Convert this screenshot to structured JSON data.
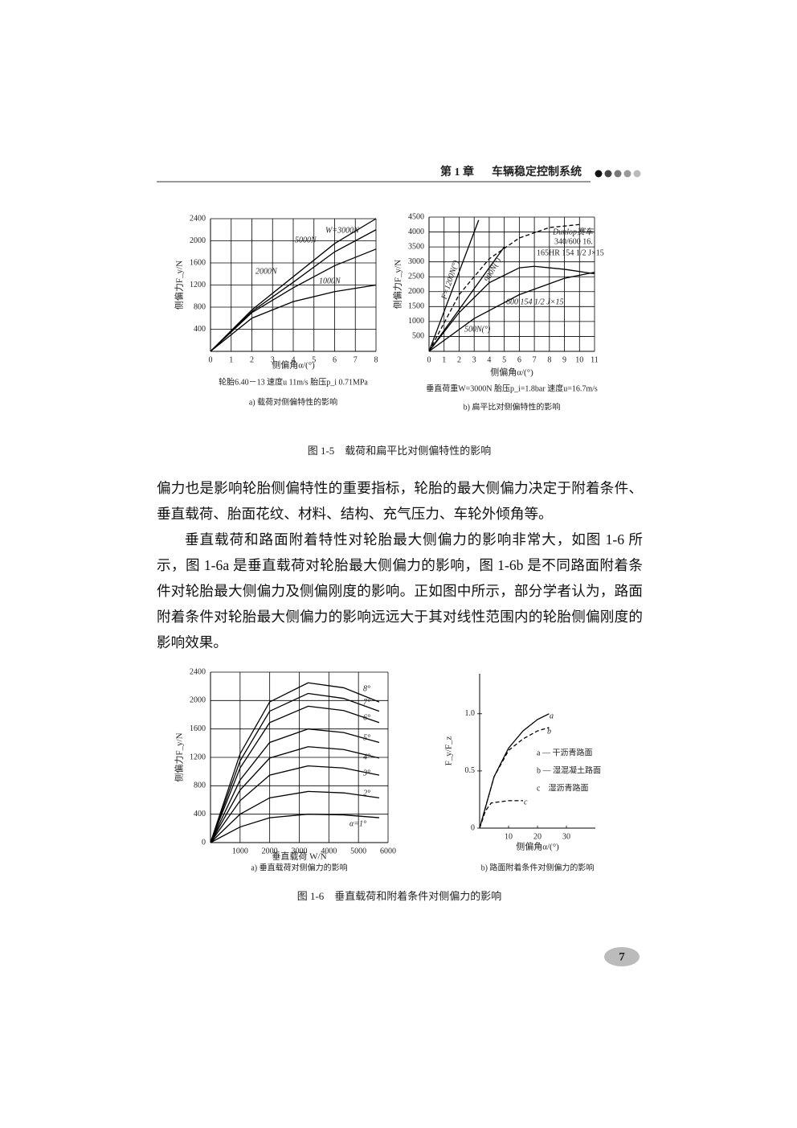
{
  "header": {
    "chapter": "第 1 章",
    "title": "车辆稳定控制系统"
  },
  "figure_1_5": {
    "caption": "图 1-5　载荷和扁平比对侧偏特性的影响",
    "charts": [
      {
        "type": "line",
        "ylabel": "侧偏力F_y/N",
        "xlabel": "侧偏角α/(°)",
        "note": "轮胎6.40－13 速度u 11m/s 胎压p_i 0.71MPa",
        "caption": "a) 载荷对侧偏特性的影响",
        "xlim": [
          0,
          8
        ],
        "ylim": [
          0,
          2400
        ],
        "xticks": [
          0,
          1,
          2,
          3,
          4,
          5,
          6,
          7,
          8
        ],
        "yticks": [
          400,
          800,
          1200,
          1600,
          2000,
          2400
        ],
        "grid": true,
        "series": [
          {
            "name": "1000N",
            "color": "#000",
            "x": [
              0,
              2,
              4,
              6,
              8
            ],
            "values": [
              0,
              600,
              900,
              1080,
              1200
            ]
          },
          {
            "name": "2000N",
            "color": "#000",
            "x": [
              0,
              2,
              4,
              6,
              8
            ],
            "values": [
              0,
              700,
              1150,
              1550,
              1850
            ]
          },
          {
            "name": "W=3000N",
            "color": "#000",
            "x": [
              0,
              2,
              4,
              6,
              8
            ],
            "values": [
              0,
              720,
              1250,
              1800,
              2200
            ]
          },
          {
            "name": "5000N",
            "color": "#000",
            "x": [
              0,
              2,
              4,
              6,
              8
            ],
            "values": [
              0,
              750,
              1350,
              1950,
              2400
            ]
          }
        ]
      },
      {
        "type": "line",
        "ylabel": "侧偏力F_y/N",
        "xlabel": "侧偏角α/(°)",
        "note": "垂直荷重W=3000N 胎压p_i=1.8bar 速度u=16.7m/s",
        "caption": "b) 扁平比对侧偏特性的影响",
        "xlim": [
          0,
          11
        ],
        "ylim": [
          0,
          4500
        ],
        "xticks": [
          0,
          1,
          2,
          3,
          4,
          5,
          6,
          7,
          8,
          9,
          10,
          11
        ],
        "yticks": [
          500,
          1000,
          1500,
          2000,
          2500,
          3000,
          3500,
          4000,
          4500
        ],
        "grid": true,
        "annotations": [
          "340/600 16.",
          "165HR 154 1/2 J×15"
        ],
        "series": [
          {
            "name": "F=1200N(°)",
            "color": "#000",
            "x": [
              0,
              3.3
            ],
            "values": [
              0,
              4400
            ]
          },
          {
            "name": "900N(°)",
            "color": "#000",
            "x": [
              0,
              5
            ],
            "values": [
              0,
              3500
            ]
          },
          {
            "name": "Dunlop赛车",
            "color": "#000",
            "dash": true,
            "x": [
              0,
              2,
              4,
              6,
              8,
              10
            ],
            "values": [
              0,
              1900,
              3100,
              3800,
              4150,
              4250
            ]
          },
          {
            "name": "600 154 1/2 J×15",
            "color": "#000",
            "x": [
              0,
              2,
              4,
              6,
              7,
              9,
              11
            ],
            "values": [
              0,
              1300,
              2300,
              2800,
              2850,
              2750,
              2600
            ]
          },
          {
            "name": "500N(°)",
            "color": "#000",
            "x": [
              0,
              3,
              6,
              9,
              11
            ],
            "values": [
              0,
              1100,
              1900,
              2450,
              2650
            ]
          }
        ]
      }
    ]
  },
  "paragraphs": [
    "偏力也是影响轮胎侧偏特性的重要指标，轮胎的最大侧偏力决定于附着条件、垂直载荷、胎面花纹、材料、结构、充气压力、车轮外倾角等。",
    "垂直载荷和路面附着特性对轮胎最大侧偏力的影响非常大，如图 1-6 所示，图 1-6a 是垂直载荷对轮胎最大侧偏力的影响，图 1-6b 是不同路面附着条件对轮胎最大侧偏力及侧偏刚度的影响。正如图中所示，部分学者认为，路面附着条件对轮胎最大侧偏力的影响远远大于其对线性范围内的轮胎侧偏刚度的影响效果。"
  ],
  "figure_1_6": {
    "caption": "图 1-6　垂直载荷和附着条件对侧偏力的影响",
    "charts": [
      {
        "type": "line",
        "ylabel": "侧偏力F_y/N",
        "xlabel": "垂直载荷 W/N",
        "caption": "a) 垂直载荷对侧偏力的影响",
        "xlim": [
          0,
          6000
        ],
        "ylim": [
          0,
          2400
        ],
        "xticks": [
          1000,
          2000,
          3000,
          4000,
          5000,
          6000
        ],
        "yticks": [
          0,
          400,
          800,
          1200,
          1600,
          2000,
          2400
        ],
        "grid": true,
        "series": [
          {
            "name": "α=1°",
            "color": "#000",
            "x": [
              0,
              1000,
              2000,
              3300,
              4500,
              5700
            ],
            "values": [
              0,
              220,
              350,
              400,
              390,
              350
            ]
          },
          {
            "name": "2°",
            "color": "#000",
            "x": [
              0,
              1000,
              2000,
              3300,
              4500,
              5700
            ],
            "values": [
              0,
              400,
              630,
              720,
              700,
              630
            ]
          },
          {
            "name": "3°",
            "color": "#000",
            "x": [
              0,
              1000,
              2000,
              3300,
              4500,
              5700
            ],
            "values": [
              0,
              590,
              950,
              1080,
              1050,
              950
            ]
          },
          {
            "name": "4°",
            "color": "#000",
            "x": [
              0,
              1000,
              2000,
              3300,
              4500,
              5700
            ],
            "values": [
              0,
              740,
              1190,
              1350,
              1310,
              1190
            ]
          },
          {
            "name": "5°",
            "color": "#000",
            "x": [
              0,
              1000,
              2000,
              3300,
              4500,
              5700
            ],
            "values": [
              0,
              880,
              1410,
              1600,
              1550,
              1410
            ]
          },
          {
            "name": "6°",
            "color": "#000",
            "x": [
              0,
              1000,
              2000,
              3300,
              4500,
              5700
            ],
            "values": [
              0,
              1050,
              1690,
              1920,
              1860,
              1690
            ]
          },
          {
            "name": "7°",
            "color": "#000",
            "x": [
              0,
              1000,
              2000,
              3300,
              4500,
              5700
            ],
            "values": [
              0,
              1150,
              1850,
              2100,
              2030,
              1850
            ]
          },
          {
            "name": "8°",
            "color": "#000",
            "x": [
              0,
              1000,
              2000,
              3300,
              4500,
              5700
            ],
            "values": [
              0,
              1250,
              1980,
              2250,
              2180,
              1980
            ]
          }
        ]
      },
      {
        "type": "line",
        "ylabel": "F_y/F_z",
        "xlabel": "侧偏角α/(°)",
        "caption": "b) 路面附着条件对侧偏力的影响",
        "xlim": [
          0,
          40
        ],
        "ylim": [
          0,
          1.35
        ],
        "xticks": [
          10,
          20,
          30
        ],
        "yticks": [
          0,
          0.5,
          {
            "value": 1,
            "label": "1.0"
          }
        ],
        "grid": false,
        "legend": [
          "a — 干沥青路面",
          "b — 湿混凝土路面",
          "c　湿沥青路面"
        ],
        "series": [
          {
            "name": "a",
            "color": "#000",
            "x": [
              0,
              5,
              10,
              15,
              20,
              24
            ],
            "values": [
              0,
              0.45,
              0.7,
              0.85,
              0.95,
              1.0
            ]
          },
          {
            "name": "b",
            "color": "#000",
            "dash": true,
            "x": [
              0,
              5,
              10,
              15,
              20,
              24
            ],
            "values": [
              0,
              0.45,
              0.68,
              0.78,
              0.85,
              0.88
            ]
          },
          {
            "name": "c",
            "color": "#000",
            "dash": true,
            "x": [
              0,
              2,
              4,
              10,
              15
            ],
            "values": [
              0,
              0.15,
              0.22,
              0.24,
              0.24
            ]
          }
        ]
      }
    ]
  },
  "page_number": "7"
}
